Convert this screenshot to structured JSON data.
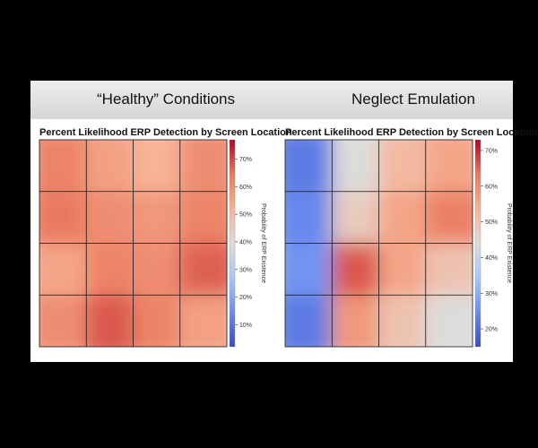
{
  "headers": {
    "left": "“Healthy” Conditions",
    "right": "Neglect Emulation"
  },
  "colors": {
    "page_background": "#000000",
    "panel_background": "#ffffff",
    "colormap": [
      "#3b4cc0",
      "#6a8cf0",
      "#aac7fd",
      "#dddcdb",
      "#f7b396",
      "#e9785d",
      "#b40426"
    ],
    "grid_lines": "#111111"
  },
  "chart_data": [
    {
      "type": "heatmap",
      "title": "Percent Likelihood ERP Detection by Screen Location",
      "colorbar_label": "Probability of ERP Existence",
      "colorbar_ticks": [
        "10%",
        "20%",
        "30%",
        "40%",
        "50%",
        "60%",
        "70%"
      ],
      "colorbar_tick_values": [
        10,
        20,
        30,
        40,
        50,
        60,
        70
      ],
      "vmin": 2,
      "vmax": 77,
      "grid": "4x4",
      "values": [
        [
          62,
          56,
          52,
          60
        ],
        [
          64,
          60,
          58,
          62
        ],
        [
          55,
          62,
          60,
          67
        ],
        [
          60,
          68,
          62,
          56
        ]
      ]
    },
    {
      "type": "heatmap",
      "title": "Percent Likelihood ERP Detection by Screen Location",
      "colorbar_label": "Probability of ERP Existence",
      "colorbar_ticks": [
        "20%",
        "30%",
        "40%",
        "50%",
        "60%",
        "70%"
      ],
      "colorbar_tick_values": [
        20,
        30,
        40,
        50,
        60,
        70
      ],
      "vmin": 15,
      "vmax": 73,
      "grid": "4x4",
      "values": [
        [
          22,
          44,
          52,
          56
        ],
        [
          24,
          48,
          56,
          62
        ],
        [
          26,
          66,
          56,
          50
        ],
        [
          22,
          58,
          50,
          44
        ]
      ]
    }
  ]
}
